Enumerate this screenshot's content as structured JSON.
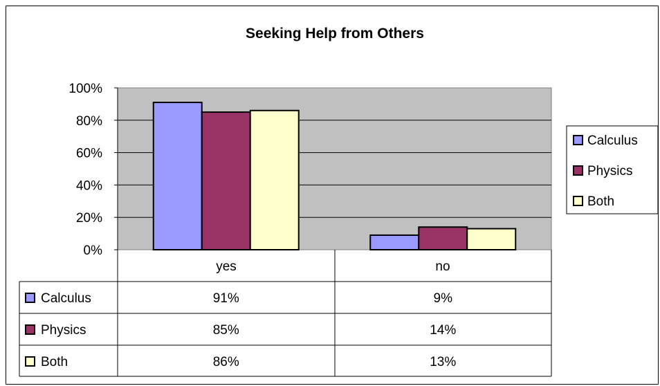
{
  "chart_data": {
    "type": "bar",
    "title": "Seeking Help from Others",
    "categories": [
      "yes",
      "no"
    ],
    "series": [
      {
        "name": "Calculus",
        "values": [
          91,
          9
        ],
        "labels": [
          "91%",
          "9%"
        ],
        "color": "#9999ff"
      },
      {
        "name": "Physics",
        "values": [
          85,
          14
        ],
        "labels": [
          "85%",
          "14%"
        ],
        "color": "#993366"
      },
      {
        "name": "Both",
        "values": [
          86,
          13
        ],
        "labels": [
          "86%",
          "13%"
        ],
        "color": "#ffffcc"
      }
    ],
    "y_ticks": [
      "0%",
      "20%",
      "40%",
      "60%",
      "80%",
      "100%"
    ],
    "ylim": [
      0,
      100
    ],
    "plot_background": "#c0c0c0",
    "grid": true,
    "legend": "right",
    "data_table": true
  }
}
